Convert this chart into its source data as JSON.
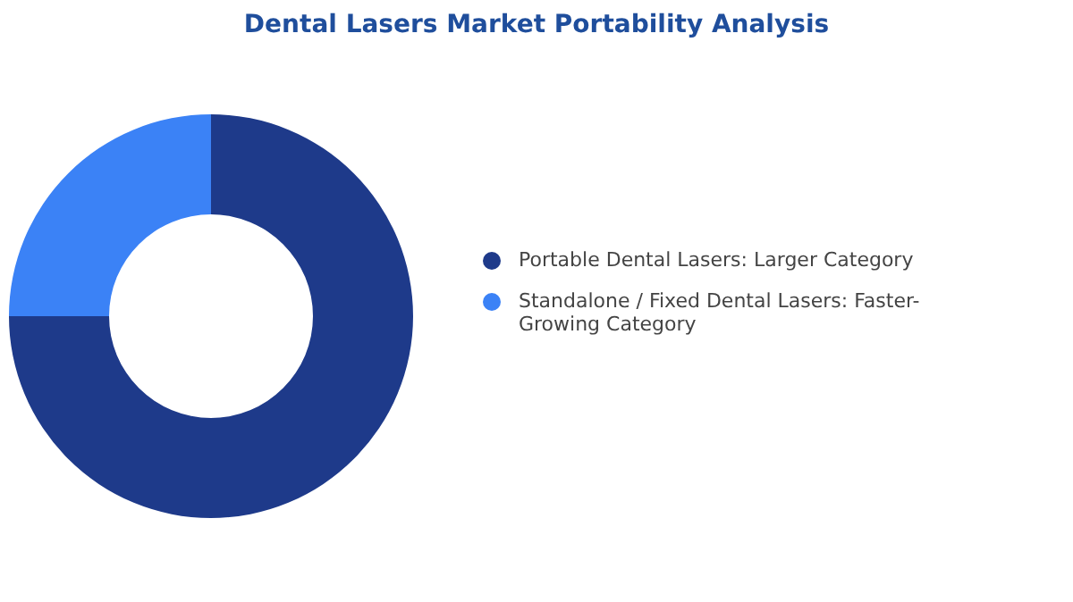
{
  "chart_data": {
    "type": "donut",
    "title": "Dental Lasers Market Portability Analysis",
    "categories": [
      "Portable Dental Lasers: Larger Category",
      "Standalone / Fixed Dental Lasers: Faster-Growing Category"
    ],
    "values": [
      75,
      25
    ],
    "colors": [
      "#1e3a8a",
      "#3b82f6"
    ],
    "legend": "right"
  }
}
